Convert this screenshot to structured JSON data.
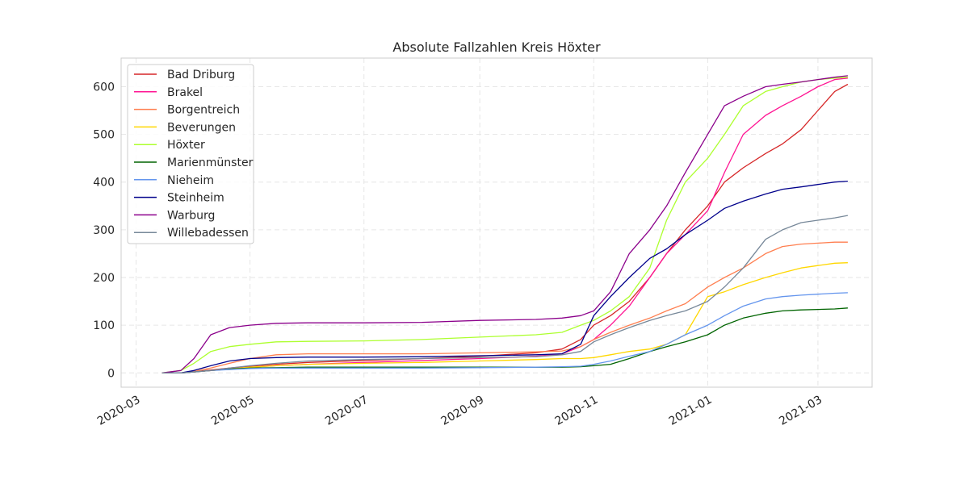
{
  "chart_data": {
    "type": "line",
    "title": "Absolute Fallzahlen Kreis Höxter",
    "xlabel": "",
    "ylabel": "",
    "xlim": [
      "2020-02-22",
      "2021-03-30"
    ],
    "ylim": [
      -30,
      660
    ],
    "x_ticks": [
      "2020-03",
      "2020-05",
      "2020-07",
      "2020-09",
      "2020-11",
      "2021-01",
      "2021-03"
    ],
    "y_ticks": [
      0,
      100,
      200,
      300,
      400,
      500,
      600
    ],
    "grid": true,
    "legend_position": "top-left",
    "x": [
      "2020-03-15",
      "2020-03-25",
      "2020-04-01",
      "2020-04-10",
      "2020-04-20",
      "2020-05-01",
      "2020-05-15",
      "2020-06-01",
      "2020-07-01",
      "2020-08-01",
      "2020-09-01",
      "2020-10-01",
      "2020-10-15",
      "2020-10-25",
      "2020-11-01",
      "2020-11-10",
      "2020-11-20",
      "2020-12-01",
      "2020-12-10",
      "2020-12-20",
      "2021-01-01",
      "2021-01-10",
      "2021-01-20",
      "2021-02-01",
      "2021-02-10",
      "2021-02-20",
      "2021-03-01",
      "2021-03-10",
      "2021-03-17"
    ],
    "series": [
      {
        "name": "Bad Driburg",
        "color": "#d62728",
        "values": [
          0,
          0,
          3,
          6,
          10,
          14,
          18,
          22,
          26,
          30,
          35,
          42,
          50,
          70,
          100,
          120,
          150,
          200,
          250,
          300,
          350,
          400,
          430,
          460,
          480,
          510,
          550,
          590,
          605
        ]
      },
      {
        "name": "Brakel",
        "color": "#ff1493",
        "values": [
          0,
          0,
          2,
          5,
          8,
          12,
          15,
          18,
          22,
          26,
          30,
          35,
          40,
          55,
          70,
          100,
          140,
          200,
          250,
          290,
          340,
          420,
          500,
          540,
          560,
          580,
          600,
          615,
          618
        ]
      },
      {
        "name": "Borgentreich",
        "color": "#ff7f50",
        "values": [
          0,
          0,
          3,
          10,
          20,
          30,
          38,
          40,
          40,
          40,
          42,
          44,
          46,
          55,
          70,
          85,
          100,
          115,
          130,
          145,
          180,
          200,
          220,
          250,
          265,
          270,
          272,
          274,
          274
        ]
      },
      {
        "name": "Beverungen",
        "color": "#ffd700",
        "values": [
          0,
          0,
          2,
          5,
          8,
          12,
          15,
          18,
          20,
          22,
          25,
          28,
          30,
          30,
          32,
          38,
          45,
          50,
          60,
          80,
          160,
          170,
          185,
          200,
          210,
          220,
          225,
          230,
          231
        ]
      },
      {
        "name": "Höxter",
        "color": "#adff2f",
        "values": [
          0,
          5,
          20,
          45,
          55,
          60,
          65,
          66,
          67,
          70,
          75,
          80,
          85,
          100,
          110,
          130,
          160,
          220,
          320,
          400,
          450,
          500,
          560,
          590,
          600,
          610,
          615,
          618,
          620
        ]
      },
      {
        "name": "Marienmünster",
        "color": "#006400",
        "values": [
          0,
          0,
          2,
          5,
          8,
          10,
          11,
          12,
          12,
          12,
          12,
          12,
          12,
          13,
          15,
          18,
          30,
          45,
          55,
          65,
          80,
          100,
          115,
          125,
          130,
          132,
          133,
          134,
          136
        ]
      },
      {
        "name": "Nieheim",
        "color": "#6495ed",
        "values": [
          0,
          0,
          2,
          5,
          7,
          9,
          10,
          10,
          10,
          10,
          11,
          12,
          13,
          14,
          18,
          25,
          35,
          45,
          60,
          80,
          100,
          120,
          140,
          155,
          160,
          163,
          165,
          167,
          168
        ]
      },
      {
        "name": "Steinheim",
        "color": "#00008b",
        "values": [
          0,
          0,
          5,
          15,
          25,
          30,
          32,
          33,
          33,
          34,
          36,
          38,
          40,
          60,
          120,
          160,
          200,
          240,
          260,
          290,
          320,
          345,
          360,
          375,
          385,
          390,
          395,
          400,
          402
        ]
      },
      {
        "name": "Warburg",
        "color": "#8b008b",
        "values": [
          0,
          5,
          30,
          80,
          95,
          100,
          104,
          105,
          105,
          106,
          110,
          112,
          115,
          120,
          130,
          170,
          250,
          300,
          350,
          420,
          500,
          560,
          580,
          600,
          605,
          610,
          615,
          620,
          623
        ]
      },
      {
        "name": "Willebadessen",
        "color": "#778899",
        "values": [
          0,
          0,
          2,
          5,
          10,
          15,
          20,
          25,
          28,
          30,
          32,
          34,
          38,
          45,
          65,
          80,
          95,
          110,
          120,
          130,
          150,
          180,
          220,
          280,
          300,
          315,
          320,
          325,
          330
        ]
      }
    ]
  }
}
